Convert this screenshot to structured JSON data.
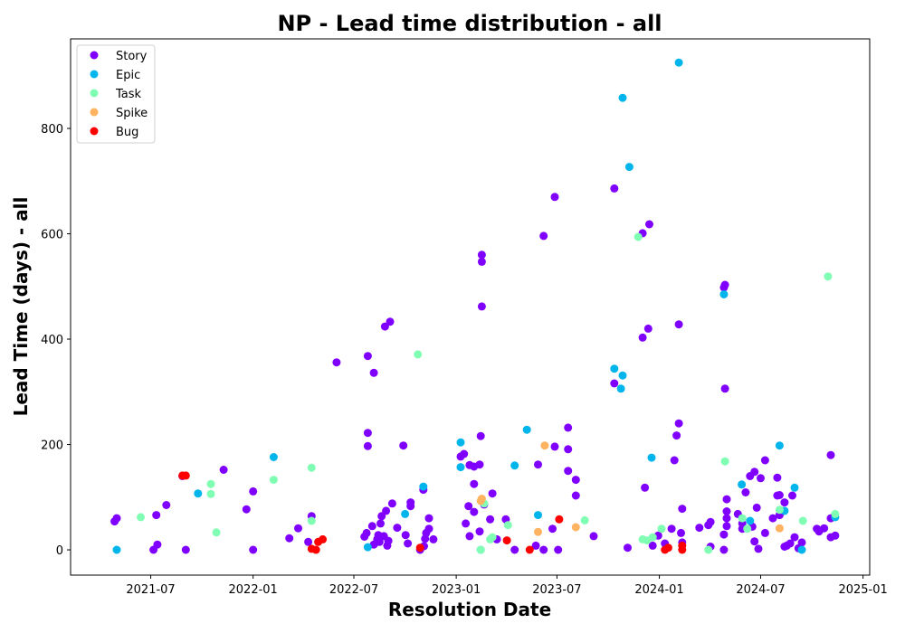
{
  "chart_data": {
    "type": "scatter",
    "title": "NP - Lead time distribution - all",
    "xlabel": "Resolution Date",
    "ylabel": "Lead Time (days) - all",
    "xlim": [
      "2021-02-07",
      "2025-01-13"
    ],
    "ylim": [
      -48,
      970
    ],
    "x_ticks": [
      {
        "date": "2021-07-01",
        "label": "2021-07"
      },
      {
        "date": "2022-01-01",
        "label": "2022-01"
      },
      {
        "date": "2022-07-01",
        "label": "2022-07"
      },
      {
        "date": "2023-01-01",
        "label": "2023-01"
      },
      {
        "date": "2023-07-01",
        "label": "2023-07"
      },
      {
        "date": "2024-01-01",
        "label": "2024-01"
      },
      {
        "date": "2024-07-01",
        "label": "2024-07"
      },
      {
        "date": "2025-01-01",
        "label": "2025-01"
      }
    ],
    "y_ticks": [
      0,
      200,
      400,
      600,
      800
    ],
    "grid": false,
    "legend_position": "top-left",
    "series": [
      {
        "name": "Story",
        "color": "#8000ff",
        "points": [
          [
            "2021-04-27",
            54
          ],
          [
            "2021-05-01",
            60
          ],
          [
            "2021-07-06",
            0
          ],
          [
            "2021-07-11",
            66
          ],
          [
            "2021-07-13",
            10
          ],
          [
            "2021-07-29",
            85
          ],
          [
            "2021-08-27",
            140
          ],
          [
            "2021-09-02",
            0
          ],
          [
            "2021-11-09",
            152
          ],
          [
            "2021-12-20",
            77
          ],
          [
            "2022-01-01",
            0
          ],
          [
            "2022-01-01",
            111
          ],
          [
            "2022-03-07",
            22
          ],
          [
            "2022-03-23",
            41
          ],
          [
            "2022-04-10",
            15
          ],
          [
            "2022-04-16",
            64
          ],
          [
            "2022-05-31",
            356
          ],
          [
            "2022-07-20",
            25
          ],
          [
            "2022-07-24",
            32
          ],
          [
            "2022-07-26",
            368
          ],
          [
            "2022-07-26",
            222
          ],
          [
            "2022-07-26",
            197
          ],
          [
            "2022-08-03",
            45
          ],
          [
            "2022-08-06",
            336
          ],
          [
            "2022-08-06",
            10
          ],
          [
            "2022-08-12",
            20
          ],
          [
            "2022-08-14",
            28
          ],
          [
            "2022-08-16",
            15
          ],
          [
            "2022-08-18",
            50
          ],
          [
            "2022-08-20",
            64
          ],
          [
            "2022-08-24",
            26
          ],
          [
            "2022-08-26",
            424
          ],
          [
            "2022-08-28",
            74
          ],
          [
            "2022-08-30",
            8
          ],
          [
            "2022-09-01",
            17
          ],
          [
            "2022-09-04",
            433
          ],
          [
            "2022-09-08",
            88
          ],
          [
            "2022-09-17",
            42
          ],
          [
            "2022-09-28",
            198
          ],
          [
            "2022-10-02",
            28
          ],
          [
            "2022-10-06",
            12
          ],
          [
            "2022-10-11",
            90
          ],
          [
            "2022-10-11",
            83
          ],
          [
            "2022-10-28",
            0
          ],
          [
            "2022-11-03",
            114
          ],
          [
            "2022-11-04",
            7
          ],
          [
            "2022-11-06",
            21
          ],
          [
            "2022-11-08",
            32
          ],
          [
            "2022-11-13",
            60
          ],
          [
            "2022-11-13",
            40
          ],
          [
            "2022-11-21",
            20
          ],
          [
            "2023-01-09",
            177
          ],
          [
            "2023-01-15",
            182
          ],
          [
            "2023-01-18",
            50
          ],
          [
            "2023-01-23",
            83
          ],
          [
            "2023-01-25",
            161
          ],
          [
            "2023-01-25",
            26
          ],
          [
            "2023-02-02",
            125
          ],
          [
            "2023-02-02",
            72
          ],
          [
            "2023-02-02",
            158
          ],
          [
            "2023-02-12",
            35
          ],
          [
            "2023-02-12",
            162
          ],
          [
            "2023-02-14",
            216
          ],
          [
            "2023-02-16",
            462
          ],
          [
            "2023-02-16",
            560
          ],
          [
            "2023-02-16",
            547
          ],
          [
            "2023-02-20",
            86
          ],
          [
            "2023-03-03",
            58
          ],
          [
            "2023-03-07",
            107
          ],
          [
            "2023-03-15",
            20
          ],
          [
            "2023-03-31",
            58
          ],
          [
            "2023-04-16",
            0
          ],
          [
            "2023-05-24",
            8
          ],
          [
            "2023-05-28",
            162
          ],
          [
            "2023-06-07",
            0
          ],
          [
            "2023-06-07",
            596
          ],
          [
            "2023-06-23",
            40
          ],
          [
            "2023-06-27",
            196
          ],
          [
            "2023-06-27",
            670
          ],
          [
            "2023-07-03",
            0
          ],
          [
            "2023-07-21",
            150
          ],
          [
            "2023-07-21",
            191
          ],
          [
            "2023-07-21",
            232
          ],
          [
            "2023-08-04",
            133
          ],
          [
            "2023-08-04",
            103
          ],
          [
            "2023-09-05",
            26
          ],
          [
            "2023-10-12",
            686
          ],
          [
            "2023-10-12",
            316
          ],
          [
            "2023-11-05",
            4
          ],
          [
            "2023-12-02",
            403
          ],
          [
            "2023-12-02",
            601
          ],
          [
            "2023-12-06",
            118
          ],
          [
            "2023-12-12",
            420
          ],
          [
            "2023-12-14",
            618
          ],
          [
            "2023-12-20",
            8
          ],
          [
            "2023-12-30",
            27
          ],
          [
            "2024-01-11",
            12
          ],
          [
            "2024-01-23",
            40
          ],
          [
            "2024-01-28",
            170
          ],
          [
            "2024-02-01",
            217
          ],
          [
            "2024-02-05",
            428
          ],
          [
            "2024-02-05",
            240
          ],
          [
            "2024-02-09",
            32
          ],
          [
            "2024-02-11",
            78
          ],
          [
            "2024-02-11",
            14
          ],
          [
            "2024-03-13",
            42
          ],
          [
            "2024-03-29",
            47
          ],
          [
            "2024-04-02",
            53
          ],
          [
            "2024-04-02",
            6
          ],
          [
            "2024-04-26",
            0
          ],
          [
            "2024-04-26",
            29
          ],
          [
            "2024-04-26",
            498
          ],
          [
            "2024-04-28",
            503
          ],
          [
            "2024-04-28",
            306
          ],
          [
            "2024-05-01",
            96
          ],
          [
            "2024-05-01",
            73
          ],
          [
            "2024-05-01",
            60
          ],
          [
            "2024-05-01",
            45
          ],
          [
            "2024-05-21",
            68
          ],
          [
            "2024-05-29",
            40
          ],
          [
            "2024-05-29",
            50
          ],
          [
            "2024-06-04",
            109
          ],
          [
            "2024-06-12",
            140
          ],
          [
            "2024-06-16",
            44
          ],
          [
            "2024-06-20",
            148
          ],
          [
            "2024-06-20",
            16
          ],
          [
            "2024-06-24",
            80
          ],
          [
            "2024-06-27",
            2
          ],
          [
            "2024-07-01",
            136
          ],
          [
            "2024-07-09",
            170
          ],
          [
            "2024-07-09",
            32
          ],
          [
            "2024-07-23",
            60
          ],
          [
            "2024-07-31",
            137
          ],
          [
            "2024-07-31",
            103
          ],
          [
            "2024-08-04",
            104
          ],
          [
            "2024-08-04",
            66
          ],
          [
            "2024-08-09",
            73
          ],
          [
            "2024-08-13",
            90
          ],
          [
            "2024-08-13",
            6
          ],
          [
            "2024-08-17",
            8
          ],
          [
            "2024-08-23",
            12
          ],
          [
            "2024-08-27",
            103
          ],
          [
            "2024-08-31",
            24
          ],
          [
            "2024-09-07",
            3
          ],
          [
            "2024-09-13",
            14
          ],
          [
            "2024-10-10",
            40
          ],
          [
            "2024-10-14",
            35
          ],
          [
            "2024-10-23",
            41
          ],
          [
            "2024-11-04",
            60
          ],
          [
            "2024-11-04",
            24
          ],
          [
            "2024-11-04",
            180
          ],
          [
            "2024-11-12",
            27
          ]
        ]
      },
      {
        "name": "Epic",
        "color": "#00b5eb",
        "points": [
          [
            "2021-05-01",
            0
          ],
          [
            "2021-09-24",
            107
          ],
          [
            "2022-02-07",
            176
          ],
          [
            "2022-07-26",
            5
          ],
          [
            "2022-10-01",
            68
          ],
          [
            "2022-11-03",
            120
          ],
          [
            "2023-01-09",
            157
          ],
          [
            "2023-01-09",
            204
          ],
          [
            "2023-02-14",
            0
          ],
          [
            "2023-04-16",
            160
          ],
          [
            "2023-05-08",
            228
          ],
          [
            "2023-05-28",
            66
          ],
          [
            "2023-10-12",
            344
          ],
          [
            "2023-10-24",
            306
          ],
          [
            "2023-10-27",
            858
          ],
          [
            "2023-10-27",
            331
          ],
          [
            "2023-11-08",
            727
          ],
          [
            "2023-12-18",
            175
          ],
          [
            "2024-02-05",
            925
          ],
          [
            "2024-04-26",
            485
          ],
          [
            "2024-05-28",
            124
          ],
          [
            "2024-06-12",
            55
          ],
          [
            "2024-08-04",
            198
          ],
          [
            "2024-08-13",
            74
          ],
          [
            "2024-08-31",
            118
          ],
          [
            "2024-09-13",
            0
          ],
          [
            "2024-11-12",
            62
          ]
        ]
      },
      {
        "name": "Task",
        "color": "#80ffb4",
        "points": [
          [
            "2021-06-13",
            62
          ],
          [
            "2021-10-17",
            125
          ],
          [
            "2021-10-17",
            106
          ],
          [
            "2021-10-27",
            33
          ],
          [
            "2022-02-07",
            133
          ],
          [
            "2022-04-16",
            156
          ],
          [
            "2022-04-16",
            55
          ],
          [
            "2022-10-24",
            371
          ],
          [
            "2023-02-14",
            0
          ],
          [
            "2023-02-20",
            88
          ],
          [
            "2023-03-03",
            20
          ],
          [
            "2023-03-07",
            24
          ],
          [
            "2023-04-04",
            47
          ],
          [
            "2023-08-20",
            56
          ],
          [
            "2023-11-24",
            594
          ],
          [
            "2023-12-02",
            20
          ],
          [
            "2023-12-10",
            18
          ],
          [
            "2023-12-20",
            24
          ],
          [
            "2024-01-05",
            40
          ],
          [
            "2024-03-29",
            0
          ],
          [
            "2024-04-28",
            168
          ],
          [
            "2024-05-29",
            60
          ],
          [
            "2024-06-07",
            40
          ],
          [
            "2024-08-04",
            76
          ],
          [
            "2024-09-15",
            55
          ],
          [
            "2024-10-30",
            519
          ],
          [
            "2024-11-12",
            68
          ]
        ]
      },
      {
        "name": "Spike",
        "color": "#ffb360",
        "points": [
          [
            "2023-02-14",
            93
          ],
          [
            "2023-02-16",
            97
          ],
          [
            "2023-05-28",
            34
          ],
          [
            "2023-06-09",
            198
          ],
          [
            "2023-08-04",
            43
          ],
          [
            "2024-08-04",
            41
          ]
        ]
      },
      {
        "name": "Bug",
        "color": "#ff0000",
        "points": [
          [
            "2021-08-27",
            141
          ],
          [
            "2021-09-02",
            141
          ],
          [
            "2022-04-16",
            2
          ],
          [
            "2022-04-24",
            0
          ],
          [
            "2022-04-28",
            15
          ],
          [
            "2022-05-06",
            20
          ],
          [
            "2022-10-28",
            4
          ],
          [
            "2023-04-02",
            18
          ],
          [
            "2023-05-13",
            0
          ],
          [
            "2023-07-05",
            58
          ],
          [
            "2024-01-11",
            0
          ],
          [
            "2024-01-17",
            4
          ],
          [
            "2024-02-11",
            0
          ],
          [
            "2024-02-11",
            8
          ]
        ]
      }
    ]
  }
}
